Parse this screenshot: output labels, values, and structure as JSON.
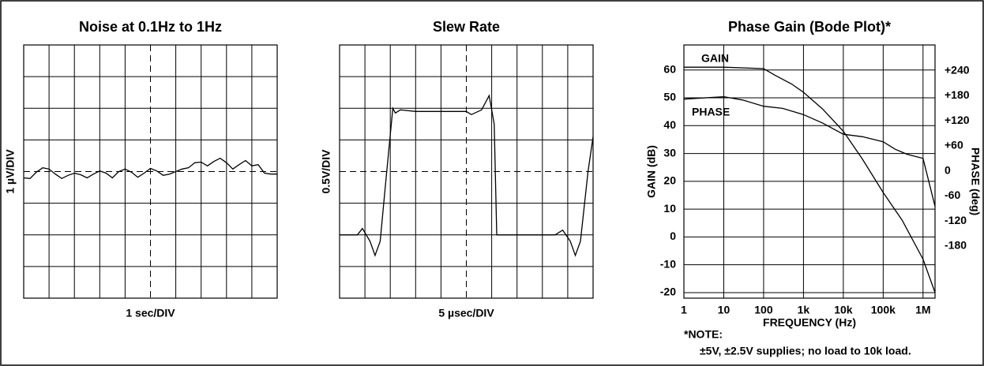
{
  "chart_data": [
    {
      "type": "line",
      "title": "Noise at 0.1Hz to 1Hz",
      "xlabel": "1 sec/DIV",
      "ylabel": "1 µV/DIV",
      "xlim": [
        0,
        10
      ],
      "ylim": [
        -4,
        4
      ],
      "xticks": [
        0,
        1,
        2,
        3,
        4,
        5,
        6,
        7,
        8,
        9,
        10
      ],
      "yticks": [
        -4,
        -3,
        -2,
        -1,
        0,
        1,
        2,
        3,
        4
      ],
      "grid": true,
      "color": "#000000",
      "x": [
        0,
        0.25,
        0.5,
        0.75,
        1,
        1.25,
        1.5,
        1.75,
        2,
        2.25,
        2.5,
        2.75,
        3,
        3.25,
        3.5,
        3.75,
        4,
        4.25,
        4.5,
        4.75,
        5,
        5.25,
        5.5,
        5.75,
        6,
        6.25,
        6.5,
        6.75,
        7,
        7.25,
        7.5,
        7.75,
        8,
        8.25,
        8.5,
        8.75,
        9,
        9.25,
        9.5,
        9.75,
        10
      ],
      "values": [
        -0.2,
        -0.22,
        -0.02,
        0.12,
        0.08,
        -0.08,
        -0.22,
        -0.12,
        -0.05,
        -0.1,
        -0.2,
        -0.08,
        0.02,
        -0.05,
        -0.2,
        0,
        0.08,
        -0.02,
        -0.18,
        -0.05,
        0.1,
        0.02,
        -0.12,
        -0.08,
        0,
        0.08,
        0.12,
        0.28,
        0.3,
        0.18,
        0.32,
        0.42,
        0.28,
        0.08,
        0.22,
        0.35,
        0.18,
        0.22,
        -0.05,
        -0.08,
        -0.08
      ]
    },
    {
      "type": "line",
      "title": "Slew Rate",
      "xlabel": "5 µsec/DIV",
      "ylabel": "0.5V/DIV",
      "xlim": [
        0,
        10
      ],
      "ylim": [
        -4,
        4
      ],
      "xticks": [
        0,
        1,
        2,
        3,
        4,
        5,
        6,
        7,
        8,
        9,
        10
      ],
      "yticks": [
        -4,
        -3,
        -2,
        -1,
        0,
        1,
        2,
        3,
        4
      ],
      "grid": true,
      "color": "#000000",
      "x": [
        0,
        0.7,
        0.9,
        1.2,
        1.4,
        1.6,
        1.8,
        2.1,
        2.2,
        2.4,
        3,
        5,
        5.2,
        5.6,
        5.9,
        6.1,
        6.2,
        8.5,
        8.8,
        9.1,
        9.3,
        9.5,
        9.8,
        10
      ],
      "values": [
        -2,
        -2,
        -1.8,
        -2.2,
        -2.65,
        -2.2,
        -0.5,
        2,
        1.85,
        1.95,
        1.9,
        1.9,
        1.8,
        1.95,
        2.4,
        1.5,
        -2,
        -2,
        -1.85,
        -2.2,
        -2.65,
        -2.2,
        0,
        1.1
      ]
    },
    {
      "type": "line",
      "title": "Phase Gain (Bode Plot)*",
      "xlabel": "FREQUENCY (Hz)",
      "ylabel": "GAIN (dB)",
      "y2label": "PHASE (deg)",
      "xscale": "log",
      "xlim": [
        1,
        2000000
      ],
      "xticks": [
        1,
        10,
        100,
        {
          "value": 1000,
          "label": "1k"
        },
        {
          "value": 10000,
          "label": "10k"
        },
        {
          "value": 100000,
          "label": "100k"
        },
        {
          "value": 1000000,
          "label": "1M"
        }
      ],
      "ylim": [
        -22,
        69
      ],
      "yticks": [
        60,
        50,
        40,
        30,
        20,
        10,
        0,
        -10,
        -20
      ],
      "y2lim": [
        -305,
        302
      ],
      "y2ticks": [
        {
          "value": 240,
          "label": "+240"
        },
        {
          "value": 180,
          "label": "+180"
        },
        {
          "value": 120,
          "label": "+120"
        },
        {
          "value": 60,
          "label": "+60"
        },
        0,
        -60,
        -120,
        -180
      ],
      "grid": true,
      "series": [
        {
          "name": "GAIN",
          "color": "#000000",
          "x": [
            1,
            10,
            100,
            200,
            500,
            1000,
            3000,
            10000,
            30000,
            100000,
            300000,
            1000000,
            2000000
          ],
          "values": [
            61,
            61,
            60.5,
            58,
            55,
            52,
            46,
            38,
            28,
            16,
            6,
            -8,
            -20
          ]
        },
        {
          "name": "PHASE",
          "color": "#000000",
          "axis": "y2",
          "x": [
            1,
            3,
            10,
            30,
            100,
            300,
            1000,
            3000,
            10000,
            30000,
            100000,
            200000,
            400000,
            1000000,
            2000000
          ],
          "values": [
            172,
            175,
            178,
            170,
            155,
            150,
            135,
            115,
            88,
            82,
            70,
            52,
            40,
            30,
            -85
          ]
        }
      ],
      "note": "*NOTE:",
      "note_detail": "±5V, ±2.5V supplies; no load to 10k load."
    }
  ]
}
